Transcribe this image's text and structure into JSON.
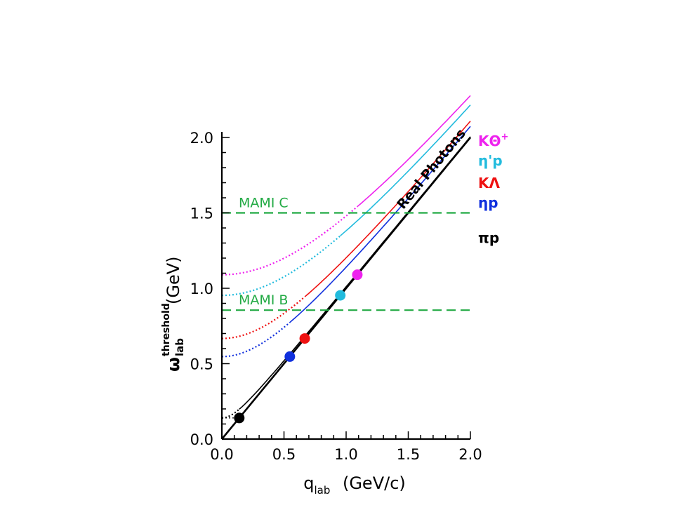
{
  "chart_data": {
    "type": "line",
    "xlabel": {
      "main": "q",
      "sub": "lab",
      "units": "(GeV/c)"
    },
    "ylabel": {
      "main": "ω",
      "sup": "threshold",
      "sub": "lab",
      "units": "(GeV)"
    },
    "xlim": [
      0,
      2.0
    ],
    "ylim": [
      0,
      2.0
    ],
    "x_ticks": [
      "0.0",
      "0.5",
      "1.0",
      "1.5",
      "2.0"
    ],
    "y_ticks": [
      "0.0",
      "0.5",
      "1.0",
      "1.5",
      "2.0"
    ],
    "grid": false,
    "reference_lines": [
      {
        "label": "MAMI C",
        "y": 1.5,
        "color": "#22aa44"
      },
      {
        "label": "MAMI B",
        "y": 0.855,
        "color": "#22aa44"
      }
    ],
    "photon_line": {
      "label": "Real Photons",
      "color": "#000000"
    },
    "series": [
      {
        "name": "πp",
        "label_parts": [
          "π",
          "p"
        ],
        "w0": 0.14,
        "color": "#000000"
      },
      {
        "name": "ηp",
        "label_parts": [
          "η",
          "p"
        ],
        "w0": 0.547,
        "color": "#1030dd"
      },
      {
        "name": "KΛ",
        "label_parts": [
          "K",
          "Λ"
        ],
        "w0": 0.667,
        "color": "#ee1111"
      },
      {
        "name": "η'p",
        "label_parts": [
          "η",
          "'p"
        ],
        "w0": 0.953,
        "color": "#22bbdd"
      },
      {
        "name": "KΘ+",
        "label_parts": [
          "K",
          "Θ",
          "+"
        ],
        "w0": 1.09,
        "color": "#ee22ee"
      }
    ]
  }
}
